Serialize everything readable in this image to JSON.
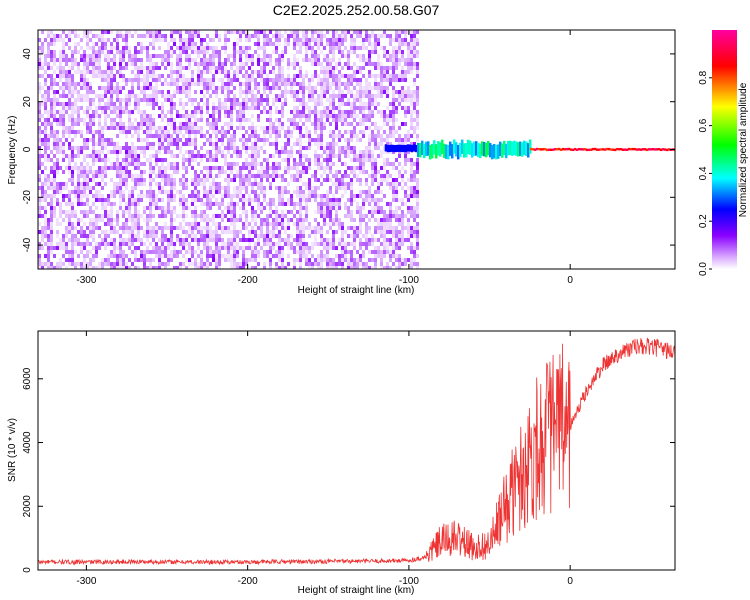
{
  "title": "C2E2.2025.252.00.58.G07",
  "chart_data": [
    {
      "type": "heatmap",
      "xlabel": "Height of straight line (km)",
      "ylabel": "Frequency (Hz)",
      "xlim": [
        -330,
        65
      ],
      "ylim": [
        -50,
        50
      ],
      "xticks": [
        -300,
        -200,
        -100,
        0
      ],
      "yticks": [
        -40,
        -20,
        0,
        20,
        40
      ],
      "colorbar": {
        "label": "Normalized spectral amplitude",
        "range": [
          0,
          1
        ],
        "ticks": [
          0.0,
          0.2,
          0.4,
          0.6,
          0.8
        ],
        "colormap": [
          "#ffffff",
          "#a000ff",
          "#0000ff",
          "#00ffff",
          "#00ff00",
          "#ffff00",
          "#ff0000",
          "#ff00a0"
        ]
      },
      "regions": [
        {
          "x_range": [
            -330,
            -95
          ],
          "y_range": [
            -50,
            50
          ],
          "amplitude_range": [
            0.02,
            0.15
          ]
        },
        {
          "x_range": [
            -115,
            -95
          ],
          "y_range": [
            -1,
            2
          ],
          "amplitude": 0.25
        },
        {
          "x_range": [
            -95,
            -25
          ],
          "y_range": [
            -3,
            3
          ],
          "amplitude_range": [
            0.3,
            0.5
          ]
        },
        {
          "x_range": [
            -25,
            65
          ],
          "y_range": [
            -0.5,
            0.5
          ],
          "amplitude_range": [
            0.8,
            0.95
          ]
        }
      ],
      "grid": false
    },
    {
      "type": "line",
      "xlabel": "Height of straight line (km)",
      "ylabel": "SNR (10 * v/v)",
      "xlim": [
        -330,
        65
      ],
      "ylim": [
        0,
        7500
      ],
      "xticks": [
        -300,
        -200,
        -100,
        0
      ],
      "yticks": [
        0,
        2000,
        4000,
        6000
      ],
      "color": "#ee3333",
      "series": [
        {
          "x": [
            -330,
            -300,
            -270,
            -240,
            -210,
            -180,
            -150,
            -120,
            -100,
            -90,
            -80,
            -70,
            -60,
            -50,
            -40,
            -30,
            -20,
            -10,
            0,
            10,
            20,
            30,
            40,
            50,
            60,
            65
          ],
          "y": [
            250,
            250,
            260,
            250,
            250,
            260,
            270,
            280,
            300,
            400,
            900,
            1000,
            700,
            800,
            2000,
            3000,
            4000,
            4400,
            4500,
            5600,
            6400,
            6800,
            7000,
            7000,
            6900,
            6800
          ]
        }
      ],
      "grid": false
    }
  ]
}
